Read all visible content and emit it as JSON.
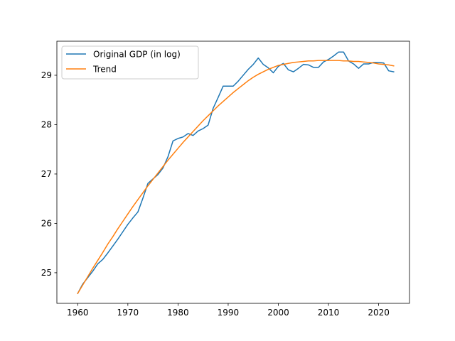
{
  "chart_data": {
    "type": "line",
    "title": "",
    "xlabel": "",
    "ylabel": "",
    "xlim": [
      1955.85,
      2026.15
    ],
    "ylim": [
      24.38,
      29.69
    ],
    "xticks": [
      1960,
      1970,
      1980,
      1990,
      2000,
      2010,
      2020
    ],
    "yticks": [
      25,
      26,
      27,
      28,
      29
    ],
    "grid": false,
    "legend_position": "upper-left",
    "x": [
      1960,
      1961,
      1962,
      1963,
      1964,
      1965,
      1966,
      1967,
      1968,
      1969,
      1970,
      1971,
      1972,
      1973,
      1974,
      1975,
      1976,
      1977,
      1978,
      1979,
      1980,
      1981,
      1982,
      1983,
      1984,
      1985,
      1986,
      1987,
      1988,
      1989,
      1990,
      1991,
      1992,
      1993,
      1994,
      1995,
      1996,
      1997,
      1998,
      1999,
      2000,
      2001,
      2002,
      2003,
      2004,
      2005,
      2006,
      2007,
      2008,
      2009,
      2010,
      2011,
      2012,
      2013,
      2014,
      2015,
      2016,
      2017,
      2018,
      2019,
      2020,
      2021,
      2022,
      2023
    ],
    "series": [
      {
        "name": "Original GDP (in log)",
        "color": "#1f77b4",
        "values": [
          24.58,
          24.77,
          24.9,
          25.03,
          25.18,
          25.27,
          25.4,
          25.54,
          25.68,
          25.83,
          25.98,
          26.11,
          26.23,
          26.51,
          26.81,
          26.9,
          26.99,
          27.12,
          27.35,
          27.67,
          27.72,
          27.75,
          27.82,
          27.78,
          27.87,
          27.92,
          27.99,
          28.33,
          28.55,
          28.78,
          28.78,
          28.78,
          28.88,
          29.0,
          29.12,
          29.22,
          29.35,
          29.22,
          29.15,
          29.05,
          29.18,
          29.24,
          29.11,
          29.07,
          29.14,
          29.22,
          29.21,
          29.16,
          29.16,
          29.27,
          29.32,
          29.39,
          29.47,
          29.47,
          29.29,
          29.23,
          29.14,
          29.23,
          29.23,
          29.26,
          29.26,
          29.25,
          29.09,
          29.07
        ]
      },
      {
        "name": "Trend",
        "color": "#ff7f0e",
        "values": [
          24.58,
          24.75,
          24.92,
          25.09,
          25.25,
          25.41,
          25.58,
          25.73,
          25.89,
          26.04,
          26.19,
          26.34,
          26.48,
          26.62,
          26.76,
          26.89,
          27.02,
          27.15,
          27.28,
          27.4,
          27.52,
          27.64,
          27.75,
          27.86,
          27.97,
          28.08,
          28.18,
          28.28,
          28.38,
          28.47,
          28.56,
          28.65,
          28.73,
          28.81,
          28.89,
          28.96,
          29.02,
          29.07,
          29.12,
          29.16,
          29.2,
          29.22,
          29.24,
          29.26,
          29.27,
          29.28,
          29.29,
          29.29,
          29.3,
          29.3,
          29.3,
          29.3,
          29.3,
          29.29,
          29.29,
          29.28,
          29.28,
          29.27,
          29.26,
          29.25,
          29.23,
          29.22,
          29.21,
          29.19
        ]
      }
    ]
  }
}
